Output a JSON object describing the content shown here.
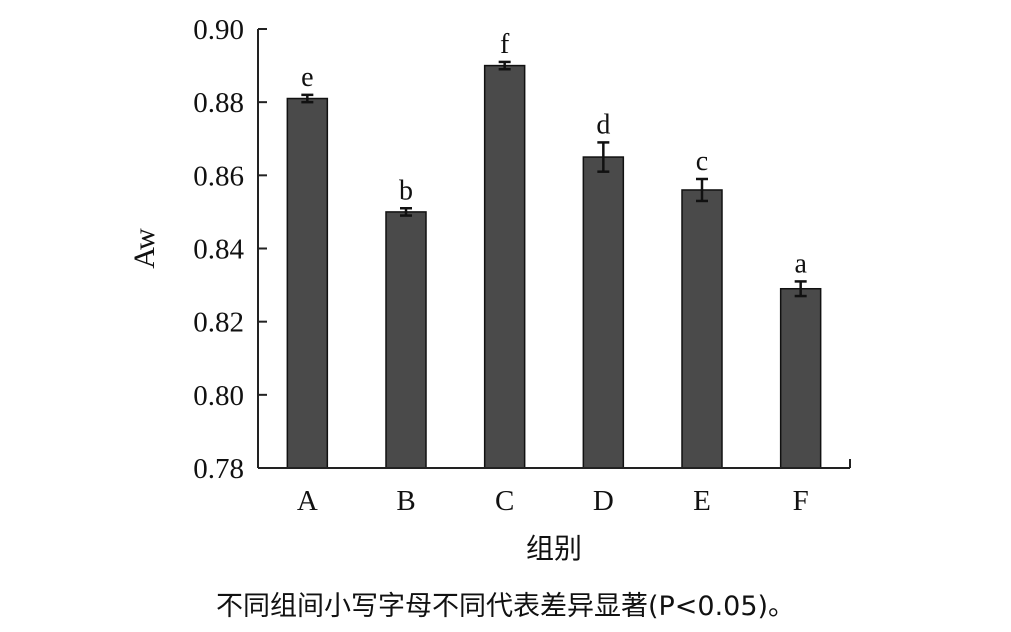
{
  "chart_data": {
    "type": "bar",
    "xlabel": "组别",
    "ylabel": "Aw",
    "ylim": [
      0.78,
      0.9
    ],
    "yticks": [
      "0.78",
      "0.80",
      "0.82",
      "0.84",
      "0.86",
      "0.88",
      "0.90"
    ],
    "categories": [
      "A",
      "B",
      "C",
      "D",
      "E",
      "F"
    ],
    "values": [
      0.881,
      0.85,
      0.89,
      0.865,
      0.856,
      0.829
    ],
    "errors": [
      0.001,
      0.001,
      0.001,
      0.004,
      0.003,
      0.002
    ],
    "significance": [
      "e",
      "b",
      "f",
      "d",
      "c",
      "a"
    ],
    "bar_color": "#4a4a4a",
    "grid": false
  },
  "caption": "不同组间小写字母不同代表差异显著(P<0.05)。"
}
